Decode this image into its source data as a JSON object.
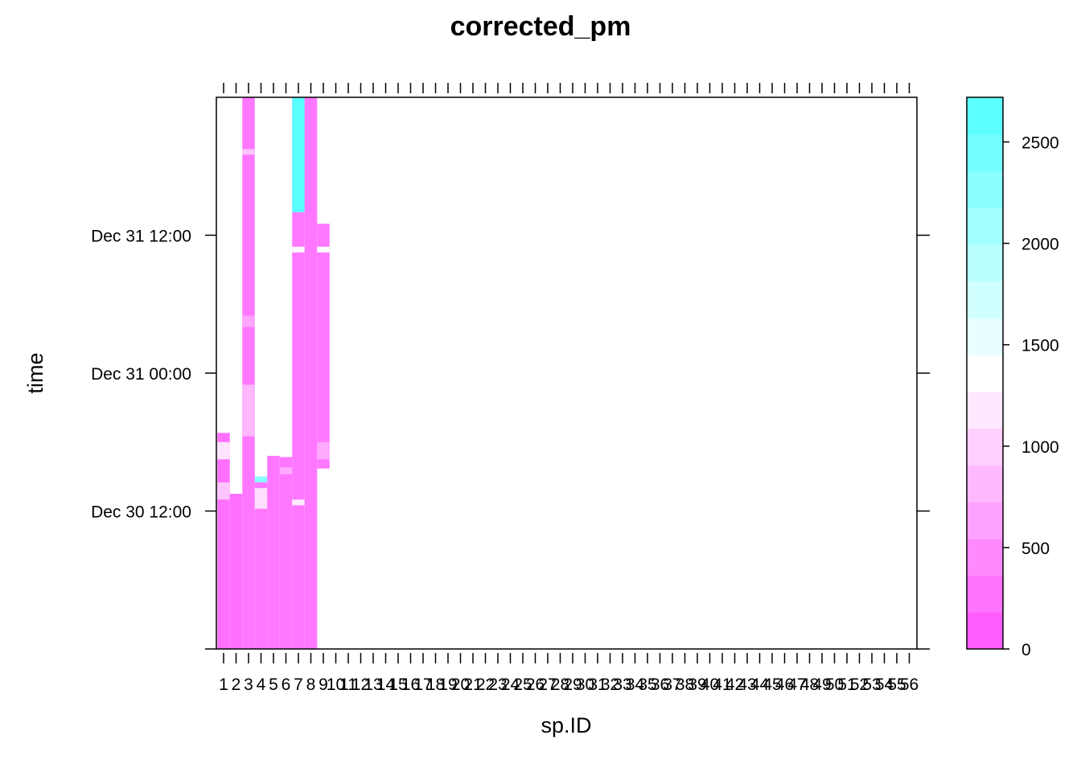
{
  "chart_data": {
    "type": "heatmap",
    "title": "corrected_pm",
    "xlabel": "sp.ID",
    "ylabel": "time",
    "x_categories": [
      "1",
      "2",
      "3",
      "4",
      "5",
      "6",
      "7",
      "8",
      "9",
      "10",
      "11",
      "12",
      "13",
      "14",
      "15",
      "16",
      "17",
      "18",
      "19",
      "20",
      "21",
      "22",
      "23",
      "24",
      "25",
      "26",
      "27",
      "28",
      "29",
      "30",
      "31",
      "32",
      "33",
      "34",
      "35",
      "36",
      "37",
      "38",
      "39",
      "40",
      "41",
      "42",
      "43",
      "44",
      "45",
      "46",
      "47",
      "48",
      "49",
      "50",
      "51",
      "52",
      "53",
      "54",
      "55",
      "56"
    ],
    "y_range_hours": [
      0,
      48
    ],
    "y_ticks": [
      {
        "label": "Dec 30 12:00",
        "hours": 12
      },
      {
        "label": "Dec 31 00:00",
        "hours": 24
      },
      {
        "label": "Dec 31 12:00",
        "hours": 36
      }
    ],
    "colorbar": {
      "range": [
        0,
        2720
      ],
      "ticks": [
        0,
        500,
        1000,
        1500,
        2000,
        2500
      ],
      "low_color": "#ff50ff",
      "mid_color": "#ffffff",
      "high_color": "#50ffff"
    },
    "cells": [
      {
        "sp": 1,
        "t_start": 0,
        "t_end": 18.8,
        "value": 250
      },
      {
        "sp": 1,
        "t_start": 13,
        "t_end": 14.5,
        "value": 900
      },
      {
        "sp": 1,
        "t_start": 16.5,
        "t_end": 18,
        "value": 1150
      },
      {
        "sp": 2,
        "t_start": 0,
        "t_end": 13.5,
        "value": 250
      },
      {
        "sp": 3,
        "t_start": 0,
        "t_end": 48,
        "value": 300
      },
      {
        "sp": 3,
        "t_start": 18.5,
        "t_end": 23,
        "value": 800
      },
      {
        "sp": 3,
        "t_start": 28,
        "t_end": 29,
        "value": 650
      },
      {
        "sp": 3,
        "t_start": 43,
        "t_end": 43.5,
        "value": 900
      },
      {
        "sp": 4,
        "t_start": 0,
        "t_end": 15,
        "value": 300
      },
      {
        "sp": 4,
        "t_start": 12.2,
        "t_end": 14,
        "value": 1100
      },
      {
        "sp": 4,
        "t_start": 14.5,
        "t_end": 15,
        "value": 2300
      },
      {
        "sp": 5,
        "t_start": 0,
        "t_end": 16.8,
        "value": 300
      },
      {
        "sp": 6,
        "t_start": 0,
        "t_end": 16.7,
        "value": 300
      },
      {
        "sp": 6,
        "t_start": 15.2,
        "t_end": 15.8,
        "value": 700
      },
      {
        "sp": 7,
        "t_start": 0,
        "t_end": 48,
        "value": 300
      },
      {
        "sp": 7,
        "t_start": 38,
        "t_end": 48,
        "value": 2650
      },
      {
        "sp": 7,
        "t_start": 12.5,
        "t_end": 13,
        "value": 1200
      },
      {
        "sp": 7,
        "t_start": 34.5,
        "t_end": 35,
        "value": 1300
      },
      {
        "sp": 8,
        "t_start": 0,
        "t_end": 48,
        "value": 300
      },
      {
        "sp": 9,
        "t_start": 15.7,
        "t_end": 37,
        "value": 300
      },
      {
        "sp": 9,
        "t_start": 16.5,
        "t_end": 18,
        "value": 700
      },
      {
        "sp": 9,
        "t_start": 34.5,
        "t_end": 35,
        "value": 1400
      }
    ]
  }
}
